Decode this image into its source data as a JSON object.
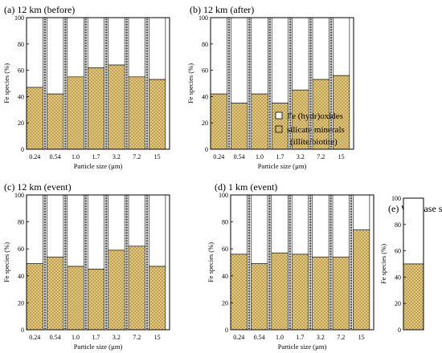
{
  "colors": {
    "silicate_fill": "#e9cd84",
    "silicate_hatch": "#a58a3c",
    "oxide_fill": "#ffffff",
    "legend_silicate_text": "#d9a21e",
    "frame": "#000000"
  },
  "legend": {
    "oxides_label": "Fe (hydr)oxides",
    "silicate_label_line1": "silicate minerals",
    "silicate_label_line2": "(illite/biotite)"
  },
  "chart_data": [
    {
      "type": "bar",
      "stacked": true,
      "title": "(a) 12 km (before)",
      "categories": [
        "0.24",
        "0.54",
        "1.0",
        "1.7",
        "3.2",
        "7.2",
        "15"
      ],
      "series": [
        {
          "name": "silicate minerals (illite/biotite)",
          "values": [
            47,
            42,
            55,
            62,
            64,
            55,
            53
          ]
        },
        {
          "name": "Fe (hydr)oxides",
          "values": [
            53,
            58,
            45,
            38,
            36,
            45,
            47
          ]
        }
      ],
      "xlabel": "Particle size (µm)",
      "ylabel": "Fe species (%)",
      "ylim": [
        0,
        100
      ],
      "yticks": [
        "0",
        "20",
        "40",
        "60",
        "80",
        "100"
      ]
    },
    {
      "type": "bar",
      "stacked": true,
      "title": "(b) 12 km (after)",
      "categories": [
        "0.24",
        "0.54",
        "1.0",
        "1.7",
        "3.2",
        "7.2",
        "15"
      ],
      "series": [
        {
          "name": "silicate minerals (illite/biotite)",
          "values": [
            42,
            35,
            42,
            35,
            45,
            53,
            56
          ]
        },
        {
          "name": "Fe (hydr)oxides",
          "values": [
            58,
            65,
            58,
            65,
            55,
            47,
            44
          ]
        }
      ],
      "xlabel": "Particle size (µm)",
      "ylabel": "Fe species (%)",
      "ylim": [
        0,
        100
      ],
      "yticks": [
        "0",
        "20",
        "40",
        "60",
        "80",
        "100"
      ],
      "legend": "bottom-right"
    },
    {
      "type": "bar",
      "stacked": true,
      "title": "(c) 12 km (event)",
      "categories": [
        "0.24",
        "0.54",
        "1.0",
        "1.7",
        "3.2",
        "7.2",
        "15"
      ],
      "series": [
        {
          "name": "silicate minerals (illite/biotite)",
          "values": [
            49,
            54,
            47,
            45,
            59,
            62,
            47
          ]
        },
        {
          "name": "Fe (hydr)oxides",
          "values": [
            51,
            46,
            53,
            55,
            41,
            38,
            53
          ]
        }
      ],
      "xlabel": "Particle size (µm)",
      "ylabel": "Fe species (%)",
      "ylim": [
        0,
        100
      ],
      "yticks": [
        "0",
        "20",
        "40",
        "60",
        "80",
        "100"
      ]
    },
    {
      "type": "bar",
      "stacked": true,
      "title": "(d) 1 km (event)",
      "categories": [
        "0.24",
        "0.54",
        "1.0",
        "1.7",
        "3.2",
        "7.2",
        "15"
      ],
      "series": [
        {
          "name": "silicate minerals (illite/biotite)",
          "values": [
            56,
            49,
            57,
            56,
            54,
            54,
            74
          ]
        },
        {
          "name": "Fe (hydr)oxides",
          "values": [
            44,
            51,
            43,
            44,
            46,
            46,
            26
          ]
        }
      ],
      "xlabel": "Particle size (µm)",
      "ylabel": "Fe species (%)",
      "ylim": [
        0,
        100
      ],
      "yticks": [
        "0",
        "20",
        "40",
        "60",
        "80",
        "100"
      ]
    },
    {
      "type": "bar",
      "stacked": true,
      "title": "(e) Watarase soil",
      "categories": [
        ""
      ],
      "series": [
        {
          "name": "silicate minerals (illite/biotite)",
          "values": [
            50
          ]
        },
        {
          "name": "Fe (hydr)oxides",
          "values": [
            50
          ]
        }
      ],
      "xlabel": "",
      "ylabel": "Fe species (%)",
      "ylim": [
        0,
        100
      ],
      "yticks": [
        "0",
        "20",
        "40",
        "60",
        "80",
        "100"
      ]
    }
  ]
}
